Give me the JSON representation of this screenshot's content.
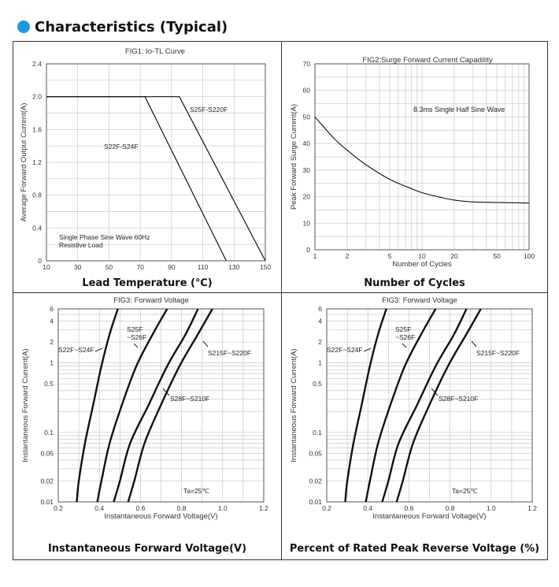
{
  "header": {
    "title": "Characteristics (Typical)"
  },
  "chart_data": [
    {
      "type": "line",
      "title": "FIG1:  Io-TL Curve",
      "xlabel": "",
      "ylabel": "Average Forward Output Current(A)",
      "caption": "Lead Temperature (℃)",
      "xlim": [
        10,
        150
      ],
      "ylim": [
        0,
        2.4
      ],
      "x_ticks": [
        "10",
        "30",
        "50",
        "70",
        "90",
        "110",
        "130",
        "150"
      ],
      "y_ticks": [
        "0",
        "0.4",
        "0.8",
        "1.2",
        "1.6",
        "2.0",
        "2.4"
      ],
      "grid": true,
      "series": [
        {
          "name": "S22F-S24F",
          "x": [
            10,
            73,
            125
          ],
          "y": [
            2.0,
            2.0,
            0
          ]
        },
        {
          "name": "S25F-S220F",
          "x": [
            10,
            95,
            150
          ],
          "y": [
            2.0,
            2.0,
            0
          ]
        }
      ],
      "annotations": [
        "Single Phase  Sine Wave 60Hz",
        "Resistive Load"
      ]
    },
    {
      "type": "line",
      "title": "FIG2:Surge Forward Current Capadility",
      "xlabel": "Number of Cycles",
      "ylabel": "Peak Forward Surge Current(A)",
      "caption": "Number of Cycles",
      "xscale": "log",
      "xlim": [
        1,
        100
      ],
      "ylim": [
        0,
        70
      ],
      "x_ticks": [
        "1",
        "2",
        "5",
        "10",
        "20",
        "50",
        "100"
      ],
      "y_ticks": [
        "0",
        "10",
        "20",
        "30",
        "40",
        "50",
        "60",
        "70"
      ],
      "grid": true,
      "series": [
        {
          "name": "",
          "x": [
            1,
            1.5,
            2,
            3,
            5,
            8,
            10,
            15,
            20,
            30,
            50,
            100
          ],
          "y": [
            50,
            42,
            37.5,
            32,
            26.5,
            23,
            21.5,
            19.7,
            18.7,
            18,
            17.8,
            17.6
          ]
        }
      ],
      "annotations": [
        "8.3ms Single Half Sine Wave"
      ]
    },
    {
      "type": "line",
      "title": "FIG3: Forward Voltage",
      "xlabel": "Instantaneous Forward Voltage(V)",
      "ylabel": "Instantaneous Forward Current(A)",
      "caption": "Instantaneous Forward Voltage(V)",
      "yscale": "log",
      "xlim": [
        0.2,
        1.2
      ],
      "ylim": [
        0.01,
        6
      ],
      "x_ticks": [
        "0.2",
        "0.4",
        "0.6",
        "0.8",
        "1.0",
        "1.2"
      ],
      "y_ticks": [
        "0.01",
        "0.02",
        "0.05",
        "0.1",
        "0.5",
        "1",
        "2",
        "4",
        "6"
      ],
      "grid": true,
      "series": [
        {
          "name": "S22F~S24F",
          "x": [
            0.29,
            0.3,
            0.33,
            0.37,
            0.41,
            0.45,
            0.49
          ],
          "y": [
            0.01,
            0.02,
            0.07,
            0.25,
            0.9,
            2.6,
            6
          ]
        },
        {
          "name": "S25F ~S26F",
          "x": [
            0.39,
            0.41,
            0.45,
            0.51,
            0.58,
            0.66,
            0.73
          ],
          "y": [
            0.01,
            0.02,
            0.07,
            0.25,
            0.9,
            2.6,
            6
          ]
        },
        {
          "name": "S28F~S210F",
          "x": [
            0.47,
            0.5,
            0.55,
            0.64,
            0.73,
            0.82,
            0.88
          ],
          "y": [
            0.01,
            0.02,
            0.07,
            0.25,
            0.9,
            2.6,
            6
          ]
        },
        {
          "name": "S215F~S220F",
          "x": [
            0.54,
            0.57,
            0.62,
            0.7,
            0.79,
            0.88,
            0.95
          ],
          "y": [
            0.01,
            0.02,
            0.07,
            0.25,
            0.9,
            2.6,
            6
          ]
        }
      ],
      "annotations": [
        "Ta=25℃"
      ]
    },
    {
      "type": "line",
      "title": "FIG3: Forward Voltage",
      "xlabel": "Instantaneous Forward Voltage(V)",
      "ylabel": "Instantaneous Forward Current(A)",
      "caption": "Percent of Rated Peak Reverse Voltage (%)",
      "yscale": "log",
      "xlim": [
        0.2,
        1.2
      ],
      "ylim": [
        0.01,
        6
      ],
      "x_ticks": [
        "0.2",
        "0.4",
        "0.6",
        "0.8",
        "1.0",
        "1.2"
      ],
      "y_ticks": [
        "0.01",
        "0.02",
        "0.05",
        "0.1",
        "0.5",
        "1",
        "2",
        "4",
        "6"
      ],
      "grid": true,
      "series": [
        {
          "name": "S22F~S24F",
          "x": [
            0.29,
            0.3,
            0.33,
            0.37,
            0.41,
            0.45,
            0.49
          ],
          "y": [
            0.01,
            0.02,
            0.07,
            0.25,
            0.9,
            2.6,
            6
          ]
        },
        {
          "name": "S25F ~S26F",
          "x": [
            0.39,
            0.41,
            0.45,
            0.51,
            0.58,
            0.66,
            0.73
          ],
          "y": [
            0.01,
            0.02,
            0.07,
            0.25,
            0.9,
            2.6,
            6
          ]
        },
        {
          "name": "S28F~S210F",
          "x": [
            0.47,
            0.5,
            0.55,
            0.64,
            0.73,
            0.82,
            0.88
          ],
          "y": [
            0.01,
            0.02,
            0.07,
            0.25,
            0.9,
            2.6,
            6
          ]
        },
        {
          "name": "S215F~S220F",
          "x": [
            0.54,
            0.57,
            0.62,
            0.7,
            0.79,
            0.88,
            0.95
          ],
          "y": [
            0.01,
            0.02,
            0.07,
            0.25,
            0.9,
            2.6,
            6
          ]
        }
      ],
      "annotations": [
        "Ta=25℃"
      ]
    }
  ]
}
